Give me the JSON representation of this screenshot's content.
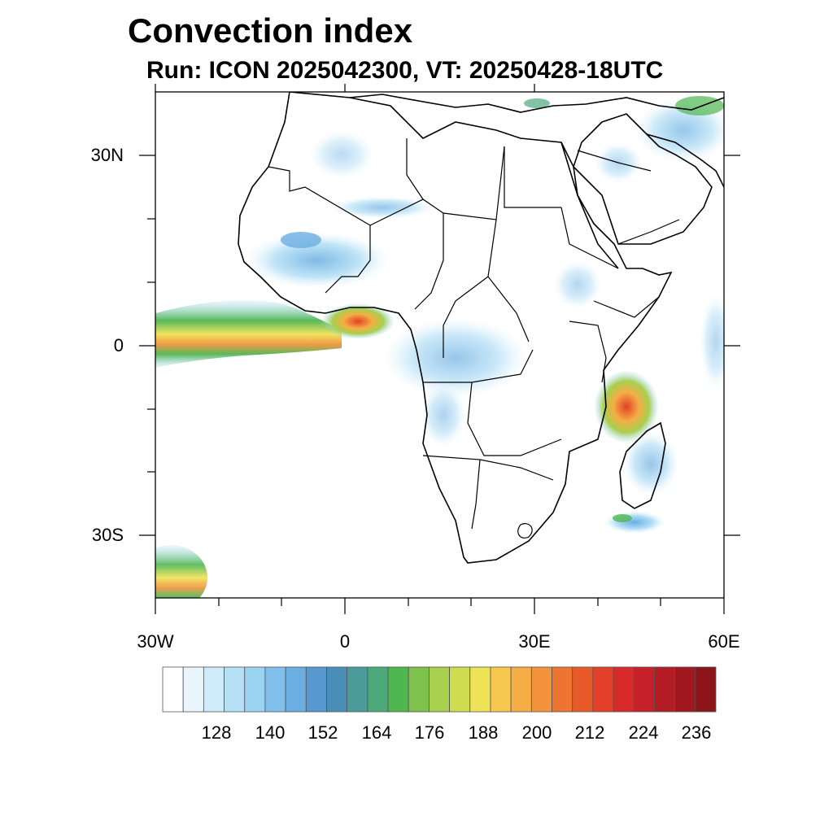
{
  "title": "Convection index",
  "subtitle": "Run: ICON 2025042300,  VT: 20250428-18UTC",
  "axes": {
    "lat_ticks": [
      "30N",
      "0",
      "30S"
    ],
    "lon_ticks": [
      "30W",
      "0",
      "30E",
      "60E"
    ]
  },
  "colorbar": {
    "labels": [
      "128",
      "140",
      "152",
      "164",
      "176",
      "188",
      "200",
      "212",
      "224",
      "236"
    ],
    "colors": [
      "#ffffff",
      "#e8f5fc",
      "#cfeaf8",
      "#b6e0f6",
      "#9ad4f2",
      "#80c0ea",
      "#6aaee2",
      "#5898d0",
      "#4a8fb8",
      "#4b9b9a",
      "#4caa7a",
      "#50b650",
      "#7cc24c",
      "#a8cf4d",
      "#d0dc4f",
      "#eee356",
      "#f6c84d",
      "#f4ae45",
      "#f3943c",
      "#ee7432",
      "#e85a2a",
      "#e24028",
      "#d82a28",
      "#c8202a",
      "#b41c24",
      "#a0181e",
      "#8c1418"
    ]
  }
}
